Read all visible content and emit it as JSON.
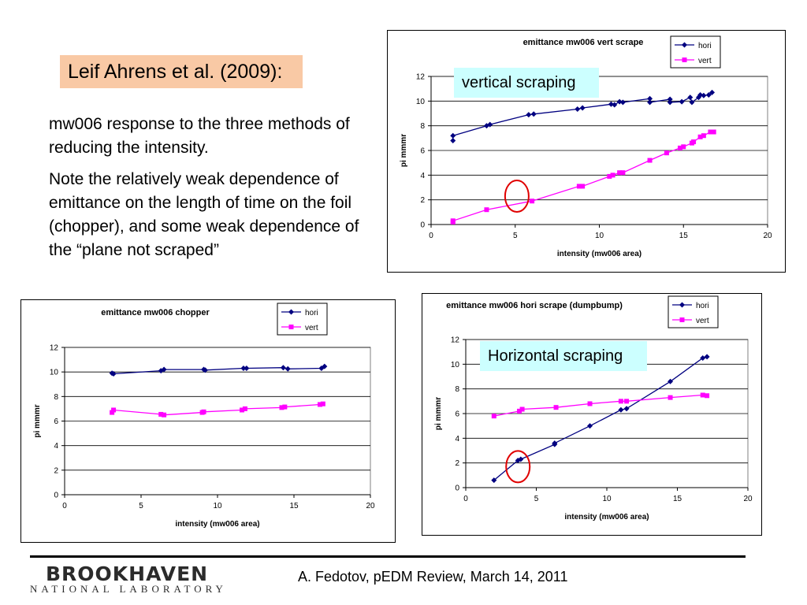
{
  "slide": {
    "reference": "Leif Ahrens et al. (2009):",
    "paragraph1": "mw006 response to the three methods of reducing the intensity.",
    "paragraph2": "Note the relatively weak dependence of emittance on the length of time on the foil (chopper), and some weak dependence of the “plane not scraped”",
    "footer": "A. Fedotov, pEDM Review, March 14, 2011",
    "logo_line1": "BROOKHAVEN",
    "logo_line2": "NATIONAL LABORATORY"
  },
  "callouts": {
    "vertical": "vertical scraping",
    "horizontal": "Horizontal scraping"
  },
  "colors": {
    "hori": "#000080",
    "vert": "#ff00ff",
    "highlight_circle": "#e00000",
    "callout_bg": "#ccffff",
    "reference_bg": "#f9c9a5"
  },
  "chart_data": [
    {
      "id": "vert",
      "type": "line",
      "title": "emittance mw006  vert scrape",
      "xlabel": "intensity (mw006 area)",
      "ylabel": "pi mmmr",
      "xlim": [
        0,
        20
      ],
      "ylim": [
        0,
        12
      ],
      "xticks": [
        0,
        5,
        10,
        15,
        20
      ],
      "yticks": [
        0,
        2,
        4,
        6,
        8,
        10,
        12
      ],
      "grid": "horizontal",
      "legend": "top-right",
      "highlight": {
        "x": 5.1,
        "y": 2.3
      },
      "series": [
        {
          "name": "hori",
          "color": "#000080",
          "marker": "diamond",
          "values": [
            [
              1.3,
              6.8
            ],
            [
              1.3,
              7.2
            ],
            [
              3.3,
              8.0
            ],
            [
              3.5,
              8.1
            ],
            [
              5.8,
              8.9
            ],
            [
              6.1,
              8.95
            ],
            [
              8.7,
              9.35
            ],
            [
              9.0,
              9.45
            ],
            [
              10.7,
              9.75
            ],
            [
              10.9,
              9.7
            ],
            [
              11.2,
              9.95
            ],
            [
              11.4,
              9.9
            ],
            [
              13.0,
              10.2
            ],
            [
              13.0,
              9.9
            ],
            [
              14.2,
              10.15
            ],
            [
              14.2,
              9.9
            ],
            [
              14.9,
              9.95
            ],
            [
              15.4,
              10.3
            ],
            [
              15.5,
              9.9
            ],
            [
              15.9,
              10.3
            ],
            [
              16.0,
              10.5
            ],
            [
              16.2,
              10.45
            ],
            [
              16.5,
              10.5
            ],
            [
              16.7,
              10.7
            ]
          ]
        },
        {
          "name": "vert",
          "color": "#ff00ff",
          "marker": "square",
          "values": [
            [
              1.3,
              0.2
            ],
            [
              1.3,
              0.3
            ],
            [
              3.3,
              1.2
            ],
            [
              6.0,
              1.9
            ],
            [
              8.8,
              3.1
            ],
            [
              9.0,
              3.1
            ],
            [
              10.6,
              3.9
            ],
            [
              10.8,
              4.0
            ],
            [
              11.2,
              4.2
            ],
            [
              11.4,
              4.2
            ],
            [
              13.0,
              5.2
            ],
            [
              14.0,
              5.8
            ],
            [
              14.8,
              6.2
            ],
            [
              15.0,
              6.3
            ],
            [
              15.5,
              6.6
            ],
            [
              15.6,
              6.7
            ],
            [
              16.0,
              7.1
            ],
            [
              16.2,
              7.2
            ],
            [
              16.6,
              7.5
            ],
            [
              16.8,
              7.5
            ]
          ]
        }
      ]
    },
    {
      "id": "chopper",
      "type": "line",
      "title": "emittance mw006  chopper",
      "xlabel": "intensity (mw006 area)",
      "ylabel": "pi mmmr",
      "xlim": [
        0,
        20
      ],
      "ylim": [
        0,
        12
      ],
      "xticks": [
        0,
        5,
        10,
        15,
        20
      ],
      "yticks": [
        0,
        2,
        4,
        6,
        8,
        10,
        12
      ],
      "grid": "horizontal",
      "legend": "top-right",
      "series": [
        {
          "name": "hori",
          "color": "#000080",
          "marker": "diamond",
          "values": [
            [
              3.1,
              9.9
            ],
            [
              3.2,
              9.85
            ],
            [
              6.3,
              10.1
            ],
            [
              6.5,
              10.2
            ],
            [
              9.1,
              10.2
            ],
            [
              9.2,
              10.15
            ],
            [
              11.7,
              10.3
            ],
            [
              11.9,
              10.3
            ],
            [
              14.3,
              10.35
            ],
            [
              14.6,
              10.25
            ],
            [
              16.8,
              10.3
            ],
            [
              17.0,
              10.45
            ]
          ]
        },
        {
          "name": "vert",
          "color": "#ff00ff",
          "marker": "square",
          "values": [
            [
              3.1,
              6.7
            ],
            [
              3.2,
              6.9
            ],
            [
              6.3,
              6.55
            ],
            [
              6.5,
              6.5
            ],
            [
              9.0,
              6.7
            ],
            [
              9.1,
              6.75
            ],
            [
              11.6,
              6.9
            ],
            [
              11.8,
              7.0
            ],
            [
              14.2,
              7.1
            ],
            [
              14.4,
              7.15
            ],
            [
              16.7,
              7.35
            ],
            [
              16.9,
              7.4
            ]
          ]
        }
      ]
    },
    {
      "id": "hori",
      "type": "line",
      "title": "emittance mw006  hori scrape (dumpbump)",
      "xlabel": "intensity (mw006 area)",
      "ylabel": "pi mmmr",
      "xlim": [
        0,
        20
      ],
      "ylim": [
        0,
        12
      ],
      "xticks": [
        0,
        5,
        10,
        15,
        20
      ],
      "yticks": [
        0,
        2,
        4,
        6,
        8,
        10,
        12
      ],
      "grid": "horizontal",
      "legend": "top-right",
      "highlight": {
        "x": 3.7,
        "y": 1.7
      },
      "series": [
        {
          "name": "hori",
          "color": "#000080",
          "marker": "diamond",
          "values": [
            [
              2.0,
              0.6
            ],
            [
              3.7,
              2.2
            ],
            [
              3.9,
              2.3
            ],
            [
              6.3,
              3.5
            ],
            [
              6.3,
              3.6
            ],
            [
              8.8,
              5.0
            ],
            [
              11.0,
              6.3
            ],
            [
              11.4,
              6.4
            ],
            [
              14.5,
              8.6
            ],
            [
              16.8,
              10.5
            ],
            [
              17.1,
              10.6
            ]
          ]
        },
        {
          "name": "vert",
          "color": "#ff00ff",
          "marker": "square",
          "values": [
            [
              2.0,
              5.8
            ],
            [
              3.8,
              6.2
            ],
            [
              4.0,
              6.35
            ],
            [
              6.4,
              6.5
            ],
            [
              8.8,
              6.8
            ],
            [
              11.0,
              7.0
            ],
            [
              11.4,
              7.0
            ],
            [
              14.5,
              7.3
            ],
            [
              16.8,
              7.5
            ],
            [
              17.1,
              7.45
            ]
          ]
        }
      ]
    }
  ]
}
